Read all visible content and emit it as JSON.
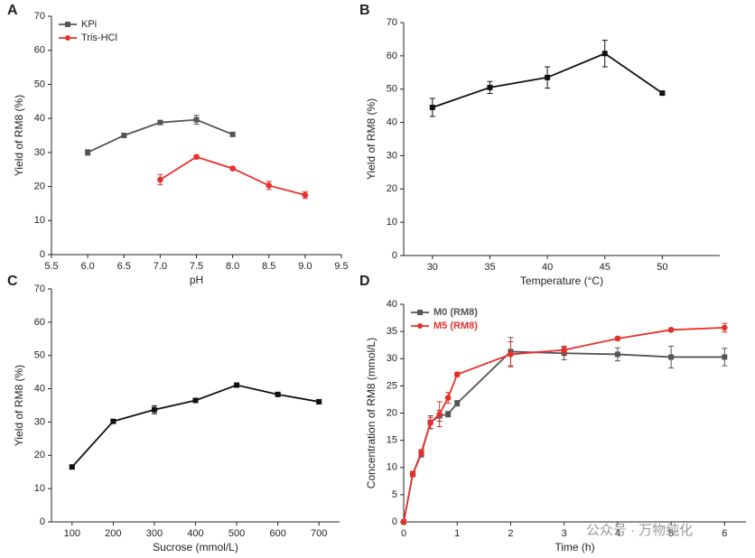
{
  "chart_data": [
    {
      "type": "line",
      "panel_label": "A",
      "x_label": "pH",
      "y_label": "Yield of RM8 (%)",
      "xlim": [
        5.5,
        9.5
      ],
      "xticks": [
        5.5,
        {
          "value": 6,
          "label": "6.0"
        },
        6.5,
        {
          "value": 7,
          "label": "7.0"
        },
        7.5,
        {
          "value": 8,
          "label": "8.0"
        },
        8.5,
        {
          "value": 9,
          "label": "9.0"
        },
        9.5
      ],
      "ylim": [
        0,
        70
      ],
      "yticks": [
        0,
        10,
        20,
        30,
        40,
        50,
        60,
        70
      ],
      "legend": "upper left",
      "series": [
        {
          "name": "KPi",
          "color": "#555555",
          "marker": "square",
          "x": [
            6,
            6.5,
            7,
            7.5,
            8
          ],
          "values": [
            30,
            35,
            38.8,
            39.6,
            35.3
          ],
          "errors": [
            0.8,
            0.5,
            0.5,
            1.3,
            0.4
          ]
        },
        {
          "name": "Tris-HCl",
          "color": "#e8302a",
          "marker": "circle",
          "x": [
            7,
            7.5,
            8,
            8.5,
            9
          ],
          "values": [
            22,
            28.7,
            25.3,
            20.3,
            17.5
          ],
          "errors": [
            1.5,
            0.5,
            0.5,
            1.2,
            1.0
          ]
        }
      ]
    },
    {
      "type": "line",
      "panel_label": "B",
      "x_label": "Temperature (°C)",
      "y_label": "Yield of RM8 (%)",
      "xlim": [
        27.5,
        55
      ],
      "xticks": [
        30,
        35,
        40,
        45,
        50
      ],
      "ylim": [
        0,
        70
      ],
      "yticks": [
        0,
        10,
        20,
        30,
        40,
        50,
        60,
        70
      ],
      "series": [
        {
          "color": "#111111",
          "marker": "square",
          "x": [
            30,
            35,
            40,
            45,
            50
          ],
          "values": [
            44.5,
            50.5,
            53.5,
            60.7,
            48.8
          ],
          "errors": [
            2.7,
            1.8,
            3.2,
            4,
            0.5
          ]
        }
      ]
    },
    {
      "type": "line",
      "panel_label": "C",
      "x_label": "Sucrose (mmol/L)",
      "y_label": "Yield of RM8 (%)",
      "xlim": [
        50,
        750
      ],
      "xticks": [
        100,
        200,
        300,
        400,
        500,
        600,
        700
      ],
      "ylim": [
        0,
        70
      ],
      "yticks": [
        0,
        10,
        20,
        30,
        40,
        50,
        60,
        70
      ],
      "series": [
        {
          "color": "#111111",
          "marker": "square",
          "x": [
            100,
            200,
            300,
            400,
            500,
            600,
            700
          ],
          "values": [
            16.5,
            30.2,
            33.7,
            36.5,
            41.1,
            38.3,
            36.1
          ],
          "errors": [
            0.6,
            0.5,
            1.2,
            0.5,
            0.5,
            0.4,
            0.6
          ]
        }
      ]
    },
    {
      "type": "line",
      "panel_label": "D",
      "x_label": "Time (h)",
      "y_label": "Concentration of RM8 (mmol/L)",
      "xlim": [
        0,
        6.4
      ],
      "xticks": [
        0,
        1,
        2,
        3,
        4,
        5,
        6
      ],
      "ylim": [
        0,
        40
      ],
      "yticks": [
        0,
        5,
        10,
        15,
        20,
        25,
        30,
        35,
        40
      ],
      "legend": "upper left",
      "series": [
        {
          "name": "M0 (RM8)",
          "color": "#555555",
          "marker": "square",
          "x": [
            0,
            0.17,
            0.33,
            0.5,
            0.67,
            0.83,
            1,
            2,
            3,
            4,
            5,
            6
          ],
          "values": [
            0,
            8.8,
            12.5,
            18.3,
            19.5,
            19.8,
            21.8,
            31.3,
            31,
            30.8,
            30.3,
            30.3
          ],
          "errors": [
            0,
            0.5,
            0.6,
            1.2,
            1.0,
            0.5,
            0.5,
            2.6,
            1.2,
            1.2,
            2.0,
            1.6
          ]
        },
        {
          "name": "M5 (RM8)",
          "color": "#e8302a",
          "marker": "circle",
          "x": [
            0,
            0.17,
            0.33,
            0.5,
            0.67,
            0.83,
            1,
            2,
            3,
            4,
            5,
            6
          ],
          "values": [
            0,
            8.8,
            12.8,
            18.2,
            19.8,
            22.8,
            27.1,
            30.8,
            31.6,
            33.7,
            35.3,
            35.7
          ],
          "errors": [
            0,
            0.4,
            0.5,
            1,
            2.3,
            1.0,
            0.4,
            2.3,
            0.7,
            0.3,
            0.3,
            0.8
          ]
        }
      ]
    }
  ],
  "watermark": "公众号 · 万物纯化"
}
